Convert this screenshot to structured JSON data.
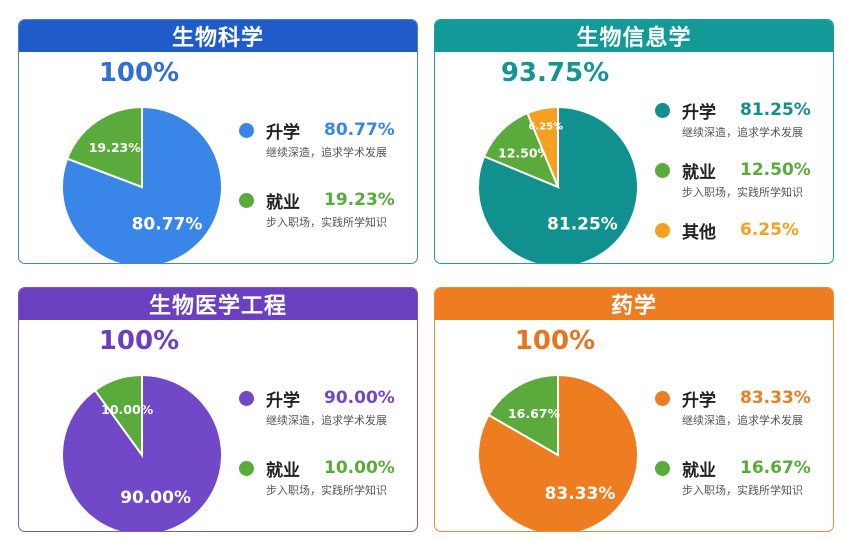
{
  "chart_data": [
    {
      "type": "pie",
      "title": "生物科学",
      "total": "100%",
      "color": "#2f6fd6",
      "header_color": "#1f5cc9",
      "border_color": "#4a7fd1",
      "slices": [
        {
          "label": "升学",
          "value": 80.77,
          "display": "80.77%",
          "desc": "继续深造，追求学术发展",
          "color": "#3a86e8"
        },
        {
          "label": "就业",
          "value": 19.23,
          "display": "19.23%",
          "desc": "步入职场，实践所学知识",
          "color": "#5aaa3c"
        }
      ]
    },
    {
      "type": "pie",
      "title": "生物信息学",
      "total": "93.75%",
      "color": "#149494",
      "header_color": "#149999",
      "border_color": "#1aa0a0",
      "slices": [
        {
          "label": "升学",
          "value": 81.25,
          "display": "81.25%",
          "desc": "继续深造，追求学术发展",
          "color": "#119090"
        },
        {
          "label": "就业",
          "value": 12.5,
          "display": "12.50%",
          "desc": "步入职场，实践所学知识",
          "color": "#5aaa3c"
        },
        {
          "label": "其他",
          "value": 6.25,
          "display": "6.25%",
          "desc": "",
          "color": "#f5a020"
        }
      ]
    },
    {
      "type": "pie",
      "title": "生物医学工程",
      "total": "100%",
      "color": "#6a3fc0",
      "header_color": "#6a3fc0",
      "border_color": "#7a55c8",
      "slices": [
        {
          "label": "升学",
          "value": 90.0,
          "display": "90.00%",
          "desc": "继续深造，追求学术发展",
          "color": "#7048c8"
        },
        {
          "label": "就业",
          "value": 10.0,
          "display": "10.00%",
          "desc": "步入职场，实践所学知识",
          "color": "#5aaa3c"
        }
      ]
    },
    {
      "type": "pie",
      "title": "药学",
      "total": "100%",
      "color": "#e6761e",
      "header_color": "#ee7d22",
      "border_color": "#ee8a3c",
      "slices": [
        {
          "label": "升学",
          "value": 83.33,
          "display": "83.33%",
          "desc": "继续深造，追求学术发展",
          "color": "#ee7d22"
        },
        {
          "label": "就业",
          "value": 16.67,
          "display": "16.67%",
          "desc": "步入职场，实践所学知识",
          "color": "#5aaa3c"
        }
      ]
    }
  ]
}
